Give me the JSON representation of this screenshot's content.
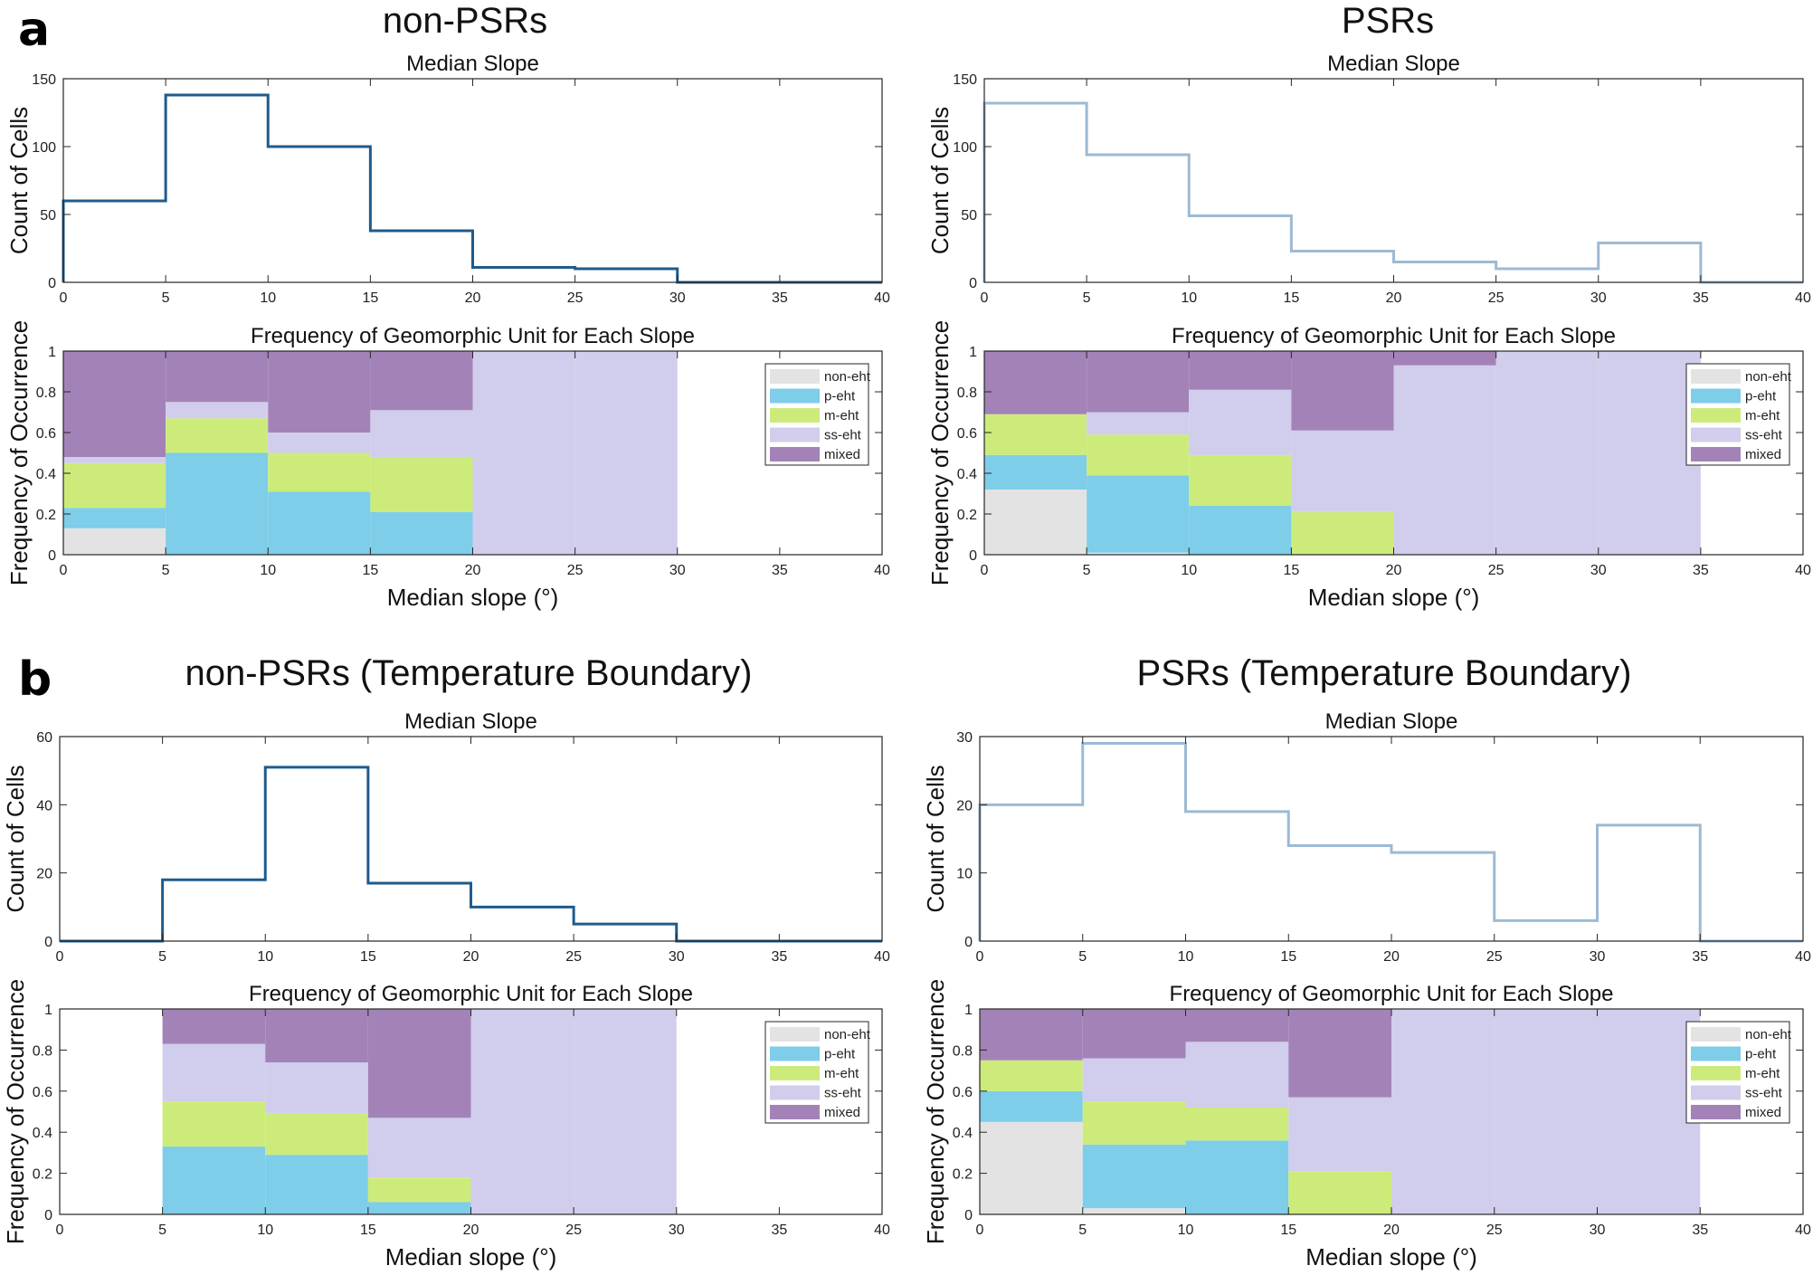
{
  "panel_labels": [
    "a",
    "b"
  ],
  "legend": {
    "units": [
      "non-eht",
      "p-eht",
      "m-eht",
      "ss-eht",
      "mixed"
    ],
    "colors": [
      "#e3e3e3",
      "#7ecde9",
      "#cdeb7b",
      "#d1cdec",
      "#a383b7"
    ]
  },
  "chart_data": [
    {
      "id": "a-left",
      "type": "stairs",
      "figure_title": "non-PSRs",
      "title": "Median Slope",
      "xlabel": "",
      "ylabel": "Count of Cells",
      "xlim": [
        0,
        40
      ],
      "ylim": [
        0,
        150
      ],
      "xticks": [
        0,
        5,
        10,
        15,
        20,
        25,
        30,
        35,
        40
      ],
      "yticks": [
        0,
        50,
        100,
        150
      ],
      "bin_edges": [
        0,
        5,
        10,
        15,
        20,
        25,
        30,
        35,
        40
      ],
      "values": [
        60,
        138,
        100,
        38,
        11,
        10,
        0,
        0
      ],
      "color": "#1f5b8c"
    },
    {
      "id": "a-right",
      "type": "stairs",
      "figure_title": "PSRs",
      "title": "Median Slope",
      "xlabel": "",
      "ylabel": "Count of Cells",
      "xlim": [
        0,
        40
      ],
      "ylim": [
        0,
        150
      ],
      "xticks": [
        0,
        5,
        10,
        15,
        20,
        25,
        30,
        35,
        40
      ],
      "yticks": [
        0,
        50,
        100,
        150
      ],
      "bin_edges": [
        0,
        5,
        10,
        15,
        20,
        25,
        30,
        35,
        40
      ],
      "values": [
        132,
        94,
        49,
        23,
        15,
        10,
        29,
        0
      ],
      "color": "#9dbad4"
    },
    {
      "id": "a-left-freq",
      "type": "stacked-bar",
      "title": "Frequency of Geomorphic Unit for Each Slope",
      "xlabel": "Median slope (°)",
      "ylabel": "Frequency of Occurrence",
      "xlim": [
        0,
        40
      ],
      "ylim": [
        0,
        1
      ],
      "xticks": [
        0,
        5,
        10,
        15,
        20,
        25,
        30,
        35,
        40
      ],
      "yticks": [
        0,
        0.2,
        0.4,
        0.6,
        0.8,
        1
      ],
      "legend_position": "top-right",
      "bin_edges": [
        0,
        5,
        10,
        15,
        20,
        25,
        30,
        35,
        40
      ],
      "series": [
        {
          "name": "non-eht",
          "values": [
            0.13,
            0,
            0,
            0,
            0,
            0,
            0,
            0
          ]
        },
        {
          "name": "p-eht",
          "values": [
            0.1,
            0.5,
            0.31,
            0.21,
            0,
            0,
            0,
            0
          ]
        },
        {
          "name": "m-eht",
          "values": [
            0.22,
            0.17,
            0.19,
            0.27,
            0,
            0,
            0,
            0
          ]
        },
        {
          "name": "ss-eht",
          "values": [
            0.03,
            0.08,
            0.1,
            0.23,
            1.0,
            1.0,
            0,
            0
          ]
        },
        {
          "name": "mixed",
          "values": [
            0.52,
            0.25,
            0.4,
            0.29,
            0,
            0,
            0,
            0
          ]
        }
      ]
    },
    {
      "id": "a-right-freq",
      "type": "stacked-bar",
      "title": "Frequency of Geomorphic Unit for Each Slope",
      "xlabel": "Median slope (°)",
      "ylabel": "Frequency of Occurrence",
      "xlim": [
        0,
        40
      ],
      "ylim": [
        0,
        1
      ],
      "xticks": [
        0,
        5,
        10,
        15,
        20,
        25,
        30,
        35,
        40
      ],
      "yticks": [
        0,
        0.2,
        0.4,
        0.6,
        0.8,
        1
      ],
      "legend_position": "top-right",
      "bin_edges": [
        0,
        5,
        10,
        15,
        20,
        25,
        30,
        35,
        40
      ],
      "series": [
        {
          "name": "non-eht",
          "values": [
            0.32,
            0.01,
            0,
            0,
            0,
            0,
            0,
            0
          ]
        },
        {
          "name": "p-eht",
          "values": [
            0.17,
            0.38,
            0.24,
            0,
            0,
            0,
            0,
            0
          ]
        },
        {
          "name": "m-eht",
          "values": [
            0.2,
            0.2,
            0.25,
            0.21,
            0,
            0,
            0,
            0
          ]
        },
        {
          "name": "ss-eht",
          "values": [
            0,
            0.11,
            0.32,
            0.4,
            0.93,
            1.0,
            1.0,
            0
          ]
        },
        {
          "name": "mixed",
          "values": [
            0.31,
            0.3,
            0.19,
            0.39,
            0.07,
            0,
            0,
            0
          ]
        }
      ]
    },
    {
      "id": "b-left",
      "type": "stairs",
      "figure_title": "non-PSRs (Temperature Boundary)",
      "title": "Median Slope",
      "xlabel": "",
      "ylabel": "Count of Cells",
      "xlim": [
        0,
        40
      ],
      "ylim": [
        0,
        60
      ],
      "xticks": [
        0,
        5,
        10,
        15,
        20,
        25,
        30,
        35,
        40
      ],
      "yticks": [
        0,
        20,
        40,
        60
      ],
      "bin_edges": [
        0,
        5,
        10,
        15,
        20,
        25,
        30,
        35,
        40
      ],
      "values": [
        0,
        18,
        51,
        17,
        10,
        5,
        0,
        0
      ],
      "color": "#1f5b8c"
    },
    {
      "id": "b-right",
      "type": "stairs",
      "figure_title": "PSRs (Temperature Boundary)",
      "title": "Median Slope",
      "xlabel": "",
      "ylabel": "Count of Cells",
      "xlim": [
        0,
        40
      ],
      "ylim": [
        0,
        30
      ],
      "xticks": [
        0,
        5,
        10,
        15,
        20,
        25,
        30,
        35,
        40
      ],
      "yticks": [
        0,
        10,
        20,
        30
      ],
      "bin_edges": [
        0,
        5,
        10,
        15,
        20,
        25,
        30,
        35,
        40
      ],
      "values": [
        20,
        29,
        19,
        14,
        13,
        3,
        17,
        0
      ],
      "color": "#9dbad4"
    },
    {
      "id": "b-left-freq",
      "type": "stacked-bar",
      "title": "Frequency of Geomorphic Unit for Each Slope",
      "xlabel": "Median slope (°)",
      "ylabel": "Frequency of Occurrence",
      "xlim": [
        0,
        40
      ],
      "ylim": [
        0,
        1
      ],
      "xticks": [
        0,
        5,
        10,
        15,
        20,
        25,
        30,
        35,
        40
      ],
      "yticks": [
        0,
        0.2,
        0.4,
        0.6,
        0.8,
        1
      ],
      "legend_position": "top-right",
      "bin_edges": [
        0,
        5,
        10,
        15,
        20,
        25,
        30,
        35,
        40
      ],
      "series": [
        {
          "name": "non-eht",
          "values": [
            0,
            0,
            0,
            0,
            0,
            0,
            0,
            0
          ]
        },
        {
          "name": "p-eht",
          "values": [
            0,
            0.33,
            0.29,
            0.06,
            0,
            0,
            0,
            0
          ]
        },
        {
          "name": "m-eht",
          "values": [
            0,
            0.22,
            0.2,
            0.12,
            0,
            0,
            0,
            0
          ]
        },
        {
          "name": "ss-eht",
          "values": [
            0,
            0.28,
            0.25,
            0.29,
            1.0,
            1.0,
            0,
            0
          ]
        },
        {
          "name": "mixed",
          "values": [
            0,
            0.17,
            0.26,
            0.53,
            0,
            0,
            0,
            0
          ]
        }
      ]
    },
    {
      "id": "b-right-freq",
      "type": "stacked-bar",
      "title": "Frequency of Geomorphic Unit for Each Slope",
      "xlabel": "Median slope (°)",
      "ylabel": "Frequency of Occurrence",
      "xlim": [
        0,
        40
      ],
      "ylim": [
        0,
        1
      ],
      "xticks": [
        0,
        5,
        10,
        15,
        20,
        25,
        30,
        35,
        40
      ],
      "yticks": [
        0,
        0.2,
        0.4,
        0.6,
        0.8,
        1
      ],
      "legend_position": "top-right",
      "bin_edges": [
        0,
        5,
        10,
        15,
        20,
        25,
        30,
        35,
        40
      ],
      "series": [
        {
          "name": "non-eht",
          "values": [
            0.45,
            0.03,
            0,
            0,
            0,
            0,
            0,
            0
          ]
        },
        {
          "name": "p-eht",
          "values": [
            0.15,
            0.31,
            0.36,
            0,
            0,
            0,
            0,
            0
          ]
        },
        {
          "name": "m-eht",
          "values": [
            0.15,
            0.21,
            0.16,
            0.21,
            0,
            0,
            0,
            0
          ]
        },
        {
          "name": "ss-eht",
          "values": [
            0,
            0.21,
            0.32,
            0.36,
            1.0,
            1.0,
            1.0,
            0
          ]
        },
        {
          "name": "mixed",
          "values": [
            0.25,
            0.24,
            0.16,
            0.43,
            0,
            0,
            0,
            0
          ]
        }
      ]
    }
  ]
}
